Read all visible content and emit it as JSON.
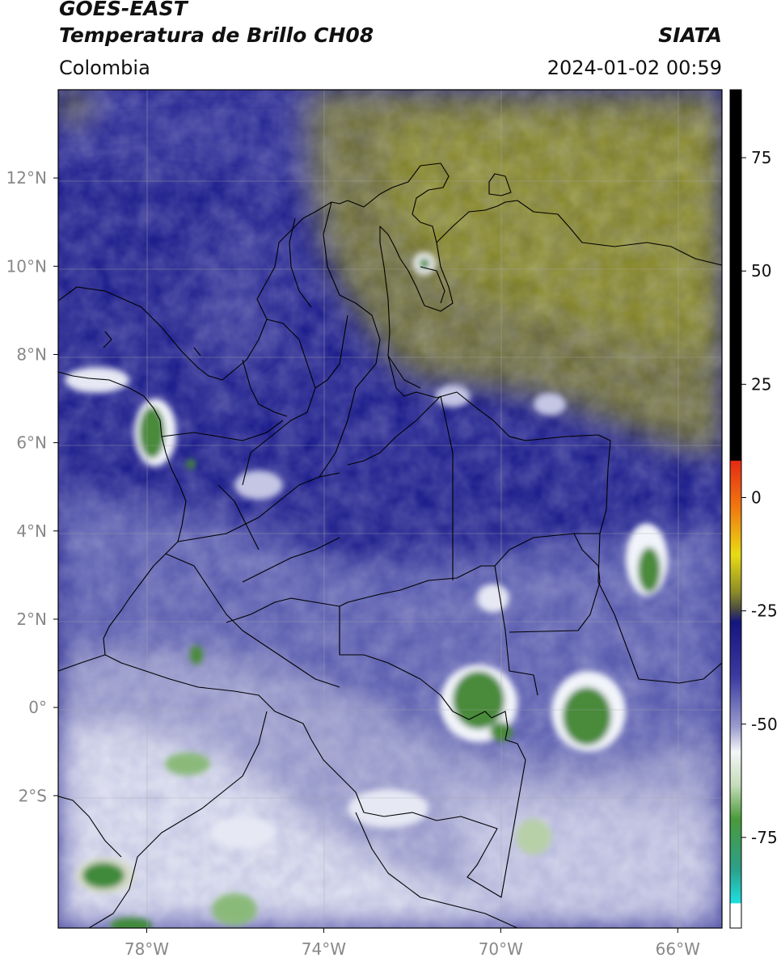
{
  "header": {
    "satellite": "GOES-EAST",
    "product": "Temperatura de Brillo CH08",
    "brand": "SIATA",
    "region": "Colombia",
    "datetime": "2024-01-02 00:59"
  },
  "map": {
    "lon_range": [
      -80,
      -65
    ],
    "lat_range": [
      -5,
      14
    ],
    "lon_ticks": [
      {
        "value": -78,
        "label": "78°W"
      },
      {
        "value": -74,
        "label": "74°W"
      },
      {
        "value": -70,
        "label": "70°W"
      },
      {
        "value": -66,
        "label": "66°W"
      }
    ],
    "lat_ticks": [
      {
        "value": 12,
        "label": "12°N"
      },
      {
        "value": 10,
        "label": "10°N"
      },
      {
        "value": 8,
        "label": "8°N"
      },
      {
        "value": 6,
        "label": "6°N"
      },
      {
        "value": 4,
        "label": "4°N"
      },
      {
        "value": 2,
        "label": "2°N"
      },
      {
        "value": 0,
        "label": "0°"
      },
      {
        "value": -2,
        "label": "2°S"
      }
    ],
    "colors": {
      "warm_yellow": "#8a8a2a",
      "mid_gray": "#5a5a4e",
      "deep_blue": "#1a1a8a",
      "light_blue": "#a8acd6",
      "cold_white": "#eef0f8",
      "cold_green": "#3f8a3a"
    }
  },
  "colorbar": {
    "range": [
      -95,
      90
    ],
    "ticks": [
      {
        "value": 75,
        "label": "75"
      },
      {
        "value": 50,
        "label": "50"
      },
      {
        "value": 25,
        "label": "25"
      },
      {
        "value": 0,
        "label": "0"
      },
      {
        "value": -25,
        "label": "-25"
      },
      {
        "value": -50,
        "label": "-50"
      },
      {
        "value": -75,
        "label": "-75"
      }
    ]
  }
}
